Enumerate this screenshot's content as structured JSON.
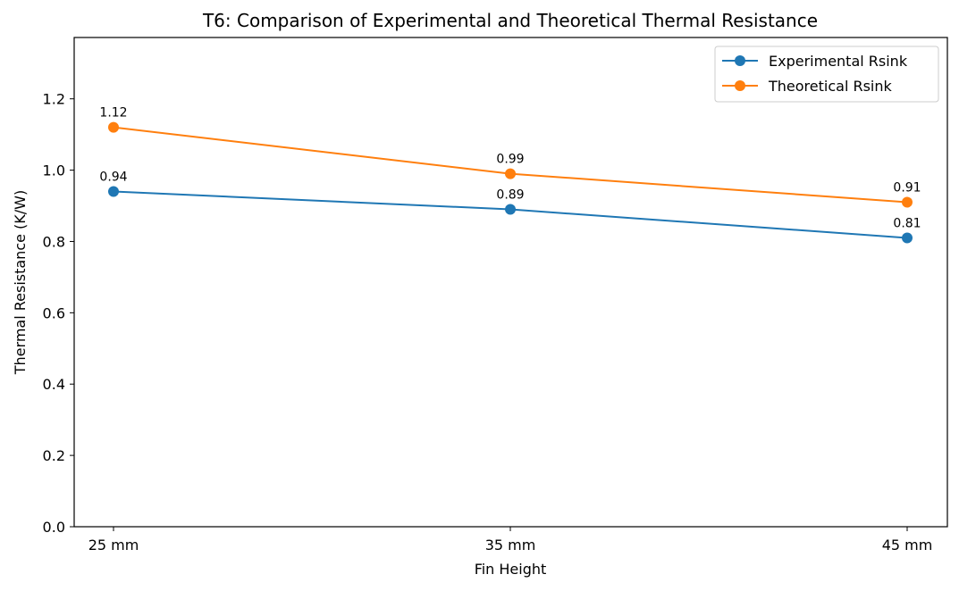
{
  "chart_data": {
    "type": "line",
    "title": "T6: Comparison of Experimental and Theoretical Thermal Resistance",
    "xlabel": "Fin Height",
    "ylabel": "Thermal Resistance (K/W)",
    "categories": [
      "25 mm",
      "35 mm",
      "45 mm"
    ],
    "ylim": [
      0,
      1.372
    ],
    "yticks": [
      0.0,
      0.2,
      0.4,
      0.6,
      0.8,
      1.0,
      1.2
    ],
    "ytick_labels": [
      "0.0",
      "0.2",
      "0.4",
      "0.6",
      "0.8",
      "1.0",
      "1.2"
    ],
    "grid": false,
    "legend_position": "top-right",
    "series": [
      {
        "name": "Experimental Rsink",
        "color": "#1f77b4",
        "values": [
          0.94,
          0.89,
          0.81
        ],
        "labels": [
          "0.94",
          "0.89",
          "0.81"
        ]
      },
      {
        "name": "Theoretical Rsink",
        "color": "#ff7f0e",
        "values": [
          1.12,
          0.99,
          0.91
        ],
        "labels": [
          "1.12",
          "0.99",
          "0.91"
        ]
      }
    ]
  }
}
